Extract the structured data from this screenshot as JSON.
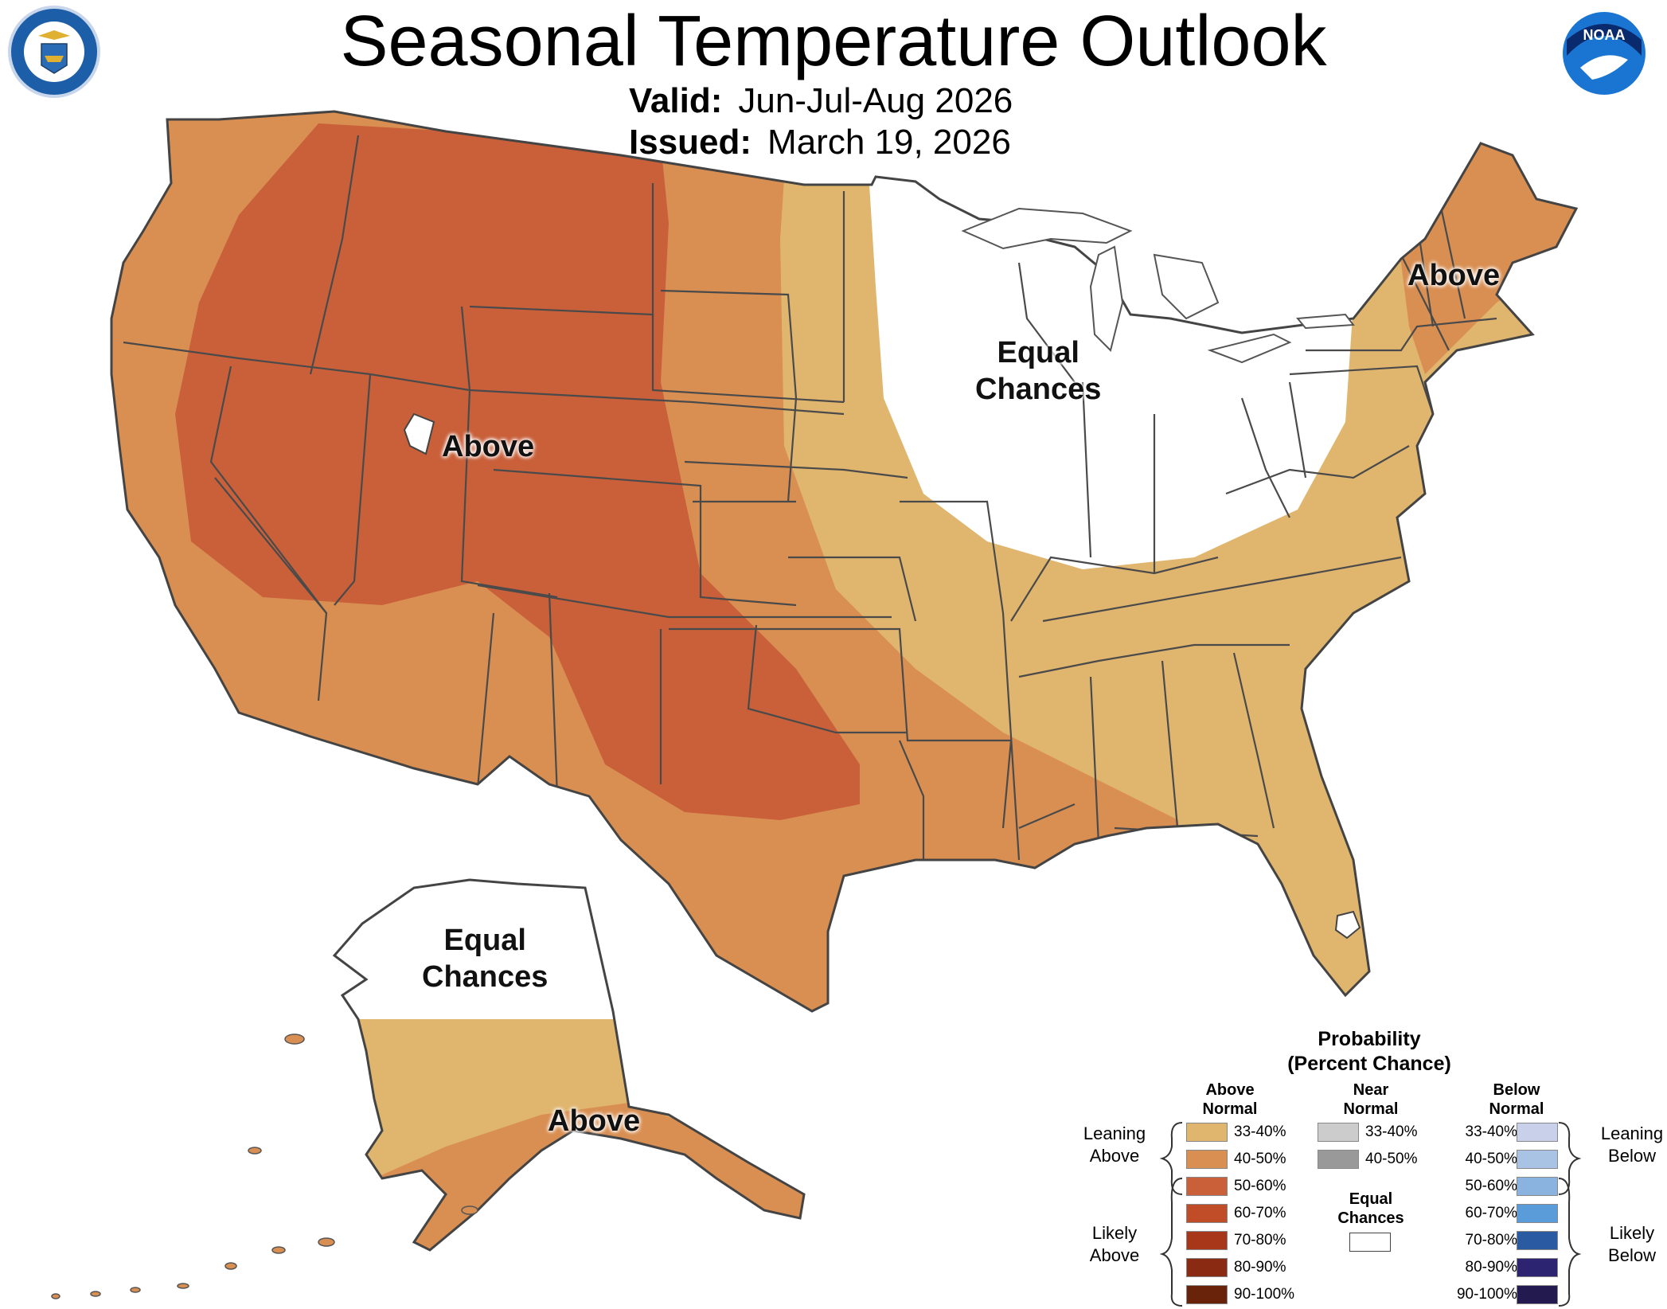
{
  "header": {
    "title": "Seasonal Temperature Outlook",
    "valid_label": "Valid:",
    "valid_value": "Jun-Jul-Aug 2026",
    "issued_label": "Issued:",
    "issued_value": "March 19, 2026"
  },
  "logos": {
    "commerce_seal": "UNITED STATES OF AMERICA · DEPARTMENT OF COMMERCE",
    "noaa": "NOAA"
  },
  "map_labels": {
    "west_above": "Above",
    "northeast_above": "Above",
    "midwest_equal": [
      "Equal",
      "Chances"
    ],
    "alaska_equal": [
      "Equal",
      "Chances"
    ],
    "alaska_above": "Above"
  },
  "colors": {
    "above_33_40": "#e0b66f",
    "above_40_50": "#d98f52",
    "above_50_60": "#c9603a",
    "above_60_70": "#c14d28",
    "above_70_80": "#a8371a",
    "above_80_90": "#8b2a12",
    "above_90_100": "#6a230b",
    "near_33_40": "#cccccc",
    "near_40_50": "#999999",
    "below_33_40": "#c8d0ea",
    "below_40_50": "#a9c3e4",
    "below_50_60": "#8ab3df",
    "below_60_70": "#5a9bda",
    "below_70_80": "#2a5aa1",
    "below_80_90": "#2c2470",
    "below_90_100": "#231b4f"
  },
  "legend": {
    "title_line1": "Probability",
    "title_line2": "(Percent Chance)",
    "above_header": [
      "Above",
      "Normal"
    ],
    "near_header": [
      "Near",
      "Normal"
    ],
    "below_header": [
      "Below",
      "Normal"
    ],
    "leaning_above": [
      "Leaning",
      "Above"
    ],
    "likely_above": [
      "Likely",
      "Above"
    ],
    "leaning_below": [
      "Leaning",
      "Below"
    ],
    "likely_below": [
      "Likely",
      "Below"
    ],
    "equal_chances": [
      "Equal",
      "Chances"
    ],
    "above_ranges": [
      "33-40%",
      "40-50%",
      "50-60%",
      "60-70%",
      "70-80%",
      "80-90%",
      "90-100%"
    ],
    "near_ranges": [
      "33-40%",
      "40-50%"
    ],
    "below_ranges": [
      "33-40%",
      "40-50%",
      "50-60%",
      "60-70%",
      "70-80%",
      "80-90%",
      "90-100%"
    ]
  }
}
